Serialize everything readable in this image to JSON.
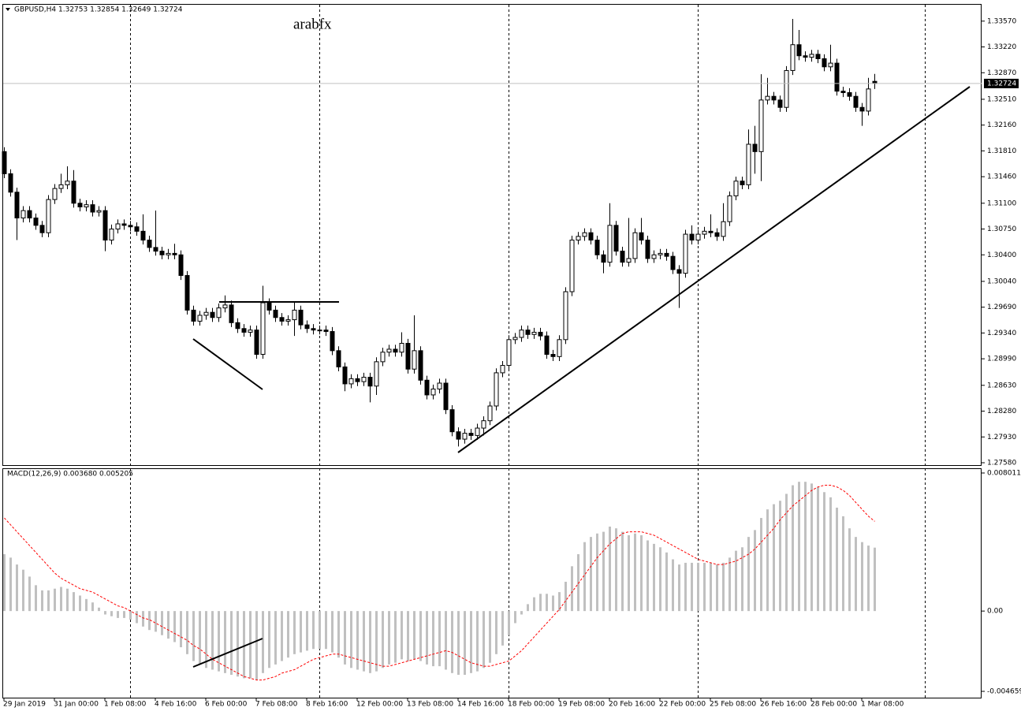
{
  "chart_data": [
    {
      "type": "candlestick",
      "title": "GBPUSD,H4  1.32753 1.32854 1.32649 1.32724",
      "annotation": "arabfx",
      "categories": [
        "29 Jan 2019",
        null,
        null,
        null,
        null,
        null,
        null,
        null,
        "31 Jan 00:00",
        null,
        null,
        null,
        null,
        null,
        null,
        null,
        "1 Feb 08:00",
        null,
        null,
        null,
        null,
        null,
        null,
        null,
        "4 Feb 16:00",
        null,
        null,
        null,
        null,
        null,
        null,
        null,
        "6 Feb 00:00",
        null,
        null,
        null,
        null,
        null,
        null,
        null,
        "7 Feb 08:00",
        null,
        null,
        null,
        null,
        null,
        null,
        null,
        "8 Feb 16:00",
        null,
        null,
        null,
        null,
        null,
        null,
        null,
        "12 Feb 00:00",
        null,
        null,
        null,
        null,
        null,
        null,
        null,
        "13 Feb 08:00",
        null,
        null,
        null,
        null,
        null,
        null,
        null,
        "14 Feb 16:00",
        null,
        null,
        null,
        null,
        null,
        null,
        null,
        "18 Feb 00:00",
        null,
        null,
        null,
        null,
        null,
        null,
        null,
        "19 Feb 08:00",
        null,
        null,
        null,
        null,
        null,
        null,
        null,
        "20 Feb 16:00",
        null,
        null,
        null,
        null,
        null,
        null,
        null,
        "22 Feb 00:00",
        null,
        null,
        null,
        null,
        null,
        null,
        null,
        "25 Feb 08:00",
        null,
        null,
        null,
        null,
        null,
        null,
        null,
        "26 Feb 16:00",
        null,
        null,
        null,
        null,
        null,
        null,
        null,
        "28 Feb 00:00",
        null,
        null,
        null,
        null,
        null,
        null,
        null,
        "1 Mar 08:00",
        null,
        null
      ],
      "open": [
        1.318,
        1.315,
        1.3125,
        1.309,
        1.31,
        1.309,
        1.308,
        1.307,
        1.3115,
        1.313,
        1.3135,
        1.314,
        1.311,
        1.3105,
        1.3108,
        1.3098,
        1.31,
        1.306,
        1.3075,
        1.3082,
        1.308,
        1.3078,
        1.3072,
        1.306,
        1.305,
        1.3045,
        1.304,
        1.3042,
        1.304,
        1.3012,
        1.2965,
        1.295,
        1.2958,
        1.2962,
        1.2955,
        1.2968,
        1.2972,
        1.2948,
        1.294,
        1.2935,
        1.2938,
        1.2905,
        1.2975,
        1.2965,
        1.2955,
        1.295,
        1.2952,
        1.2965,
        1.2945,
        1.294,
        1.2938,
        1.2938,
        1.2936,
        1.291,
        1.2888,
        1.2865,
        1.2872,
        1.2868,
        1.2874,
        1.2862,
        1.2895,
        1.2908,
        1.2912,
        1.2908,
        1.292,
        1.2885,
        1.291,
        1.287,
        1.285,
        1.2858,
        1.2866,
        1.283,
        1.28,
        1.279,
        1.2798,
        1.2795,
        1.2805,
        1.2815,
        1.2835,
        1.288,
        1.289,
        1.2925,
        1.2928,
        1.2938,
        1.2932,
        1.2935,
        1.293,
        1.2905,
        1.2902,
        1.2925,
        1.299,
        1.306,
        1.3065,
        1.307,
        1.306,
        1.304,
        1.303,
        1.308,
        1.3045,
        1.303,
        1.3035,
        1.307,
        1.306,
        1.3035,
        1.304,
        1.3042,
        1.3038,
        1.302,
        1.3015,
        1.3068,
        1.306,
        1.3068,
        1.3072,
        1.307,
        1.3065,
        1.3085,
        1.312,
        1.314,
        1.3135,
        1.319,
        1.318,
        1.325,
        1.3255,
        1.325,
        1.324,
        1.329,
        1.3325,
        1.331,
        1.3308,
        1.3312,
        1.3306,
        1.3295,
        1.33,
        1.3262,
        1.326,
        1.3255,
        1.324,
        1.3235,
        1.32753
      ],
      "high": [
        1.3186,
        1.3156,
        1.3131,
        1.3106,
        1.3106,
        1.3096,
        1.3086,
        1.3121,
        1.3136,
        1.315,
        1.316,
        1.3155,
        1.3116,
        1.3114,
        1.3114,
        1.3106,
        1.3106,
        1.3081,
        1.3088,
        1.3088,
        1.3086,
        1.3084,
        1.3095,
        1.3066,
        1.31,
        1.3051,
        1.3048,
        1.3055,
        1.3046,
        1.3018,
        1.2971,
        1.2964,
        1.2968,
        1.2968,
        1.2974,
        1.2985,
        1.2978,
        1.2954,
        1.2946,
        1.2944,
        1.2944,
        1.2998,
        1.2981,
        1.2971,
        1.2961,
        1.2958,
        1.2975,
        1.2971,
        1.2951,
        1.2946,
        1.2944,
        1.2944,
        1.2942,
        1.2916,
        1.2894,
        1.2878,
        1.2878,
        1.288,
        1.288,
        1.2901,
        1.2914,
        1.2918,
        1.2918,
        1.2935,
        1.2926,
        1.2958,
        1.2916,
        1.2876,
        1.2864,
        1.2872,
        1.2872,
        1.2836,
        1.2806,
        1.2804,
        1.2804,
        1.2811,
        1.2821,
        1.2841,
        1.2886,
        1.2896,
        1.2931,
        1.2934,
        1.2944,
        1.2944,
        1.2941,
        1.2941,
        1.2936,
        1.2911,
        1.2931,
        1.2996,
        1.3066,
        1.3071,
        1.3076,
        1.3076,
        1.3066,
        1.3046,
        1.311,
        1.3086,
        1.3051,
        1.309,
        1.3076,
        1.309,
        1.3066,
        1.3046,
        1.3048,
        1.3048,
        1.3044,
        1.3026,
        1.3074,
        1.308,
        1.3074,
        1.3078,
        1.3095,
        1.3076,
        1.311,
        1.3126,
        1.3146,
        1.3146,
        1.321,
        1.3215,
        1.3285,
        1.328,
        1.3261,
        1.3256,
        1.3296,
        1.336,
        1.3345,
        1.3316,
        1.3318,
        1.3318,
        1.3312,
        1.3325,
        1.3306,
        1.3268,
        1.3266,
        1.3261,
        1.3246,
        1.328,
        1.32854
      ],
      "low": [
        1.3144,
        1.3119,
        1.306,
        1.3084,
        1.3084,
        1.3074,
        1.3064,
        1.3064,
        1.3109,
        1.3124,
        1.3129,
        1.3104,
        1.3099,
        1.3099,
        1.3092,
        1.3092,
        1.3045,
        1.3054,
        1.3069,
        1.3074,
        1.3072,
        1.3066,
        1.3054,
        1.3044,
        1.3039,
        1.3034,
        1.3034,
        1.3034,
        1.3006,
        1.2959,
        1.2944,
        1.2944,
        1.2952,
        1.2949,
        1.2949,
        1.2962,
        1.2942,
        1.2934,
        1.2929,
        1.2929,
        1.2899,
        1.2899,
        1.2959,
        1.2949,
        1.2944,
        1.2944,
        1.293,
        1.2939,
        1.2934,
        1.2932,
        1.2932,
        1.293,
        1.2904,
        1.2882,
        1.2855,
        1.2859,
        1.2862,
        1.2862,
        1.284,
        1.285,
        1.2889,
        1.2902,
        1.2902,
        1.2902,
        1.2879,
        1.2879,
        1.2864,
        1.2844,
        1.2844,
        1.2852,
        1.2824,
        1.2794,
        1.278,
        1.2784,
        1.2789,
        1.2789,
        1.2795,
        1.2809,
        1.2829,
        1.2874,
        1.2884,
        1.2919,
        1.2922,
        1.2926,
        1.2926,
        1.2924,
        1.2899,
        1.2896,
        1.2896,
        1.2919,
        1.2984,
        1.3054,
        1.3059,
        1.3054,
        1.3034,
        1.3015,
        1.3024,
        1.3039,
        1.3024,
        1.3024,
        1.3029,
        1.3054,
        1.3029,
        1.3029,
        1.3034,
        1.3032,
        1.3014,
        1.2968,
        1.3009,
        1.3054,
        1.3054,
        1.3062,
        1.3064,
        1.3059,
        1.3059,
        1.3079,
        1.3114,
        1.3129,
        1.3129,
        1.315,
        1.314,
        1.3244,
        1.3244,
        1.3234,
        1.3234,
        1.3284,
        1.3304,
        1.3302,
        1.3302,
        1.33,
        1.3289,
        1.3289,
        1.3256,
        1.3254,
        1.3249,
        1.3234,
        1.3215,
        1.3229,
        1.32649
      ],
      "close": [
        1.315,
        1.3125,
        1.309,
        1.31,
        1.309,
        1.308,
        1.307,
        1.3115,
        1.313,
        1.3135,
        1.314,
        1.311,
        1.3105,
        1.3108,
        1.3098,
        1.31,
        1.306,
        1.3075,
        1.3082,
        1.308,
        1.3078,
        1.3072,
        1.306,
        1.305,
        1.3045,
        1.304,
        1.3042,
        1.304,
        1.3012,
        1.2965,
        1.295,
        1.2958,
        1.2962,
        1.2955,
        1.2968,
        1.2972,
        1.2948,
        1.294,
        1.2935,
        1.2938,
        1.2905,
        1.2975,
        1.2965,
        1.2955,
        1.295,
        1.2952,
        1.2965,
        1.2945,
        1.294,
        1.2938,
        1.2938,
        1.2936,
        1.291,
        1.2888,
        1.2865,
        1.2872,
        1.2868,
        1.2874,
        1.2862,
        1.2895,
        1.2908,
        1.2912,
        1.2908,
        1.292,
        1.2885,
        1.291,
        1.287,
        1.285,
        1.2858,
        1.2866,
        1.283,
        1.28,
        1.279,
        1.2798,
        1.2795,
        1.2805,
        1.2815,
        1.2835,
        1.288,
        1.289,
        1.2925,
        1.2928,
        1.2938,
        1.2932,
        1.2935,
        1.293,
        1.2905,
        1.2902,
        1.2925,
        1.299,
        1.306,
        1.3065,
        1.307,
        1.306,
        1.304,
        1.303,
        1.308,
        1.3045,
        1.303,
        1.3035,
        1.307,
        1.306,
        1.3035,
        1.304,
        1.3042,
        1.3038,
        1.302,
        1.3015,
        1.3068,
        1.306,
        1.3068,
        1.3072,
        1.307,
        1.3065,
        1.3085,
        1.312,
        1.314,
        1.3135,
        1.319,
        1.318,
        1.325,
        1.3255,
        1.325,
        1.324,
        1.329,
        1.3325,
        1.331,
        1.3308,
        1.3312,
        1.3306,
        1.3295,
        1.33,
        1.3262,
        1.326,
        1.3255,
        1.324,
        1.3235,
        1.3265,
        1.32724
      ],
      "ylim": [
        1.27548,
        1.33803
      ],
      "yticks": [
        {
          "value": 1.3357,
          "label": "1.33570"
        },
        {
          "value": 1.3322,
          "label": "1.33220"
        },
        {
          "value": 1.3287,
          "label": "1.32870"
        },
        {
          "value": 1.3251,
          "label": "1.32510"
        },
        {
          "value": 1.3216,
          "label": "1.32160"
        },
        {
          "value": 1.3181,
          "label": "1.31810"
        },
        {
          "value": 1.3146,
          "label": "1.31460"
        },
        {
          "value": 1.311,
          "label": "1.31100"
        },
        {
          "value": 1.3075,
          "label": "1.30750"
        },
        {
          "value": 1.304,
          "label": "1.30400"
        },
        {
          "value": 1.3004,
          "label": "1.30040"
        },
        {
          "value": 1.2969,
          "label": "1.29690"
        },
        {
          "value": 1.2934,
          "label": "1.29340"
        },
        {
          "value": 1.2899,
          "label": "1.28990"
        },
        {
          "value": 1.2863,
          "label": "1.28630"
        },
        {
          "value": 1.2828,
          "label": "1.28280"
        },
        {
          "value": 1.2793,
          "label": "1.27930"
        },
        {
          "value": 1.2758,
          "label": "1.27580"
        }
      ]
    },
    {
      "type": "macd",
      "title": "MACD(12,26,9) 0.003680 0.005205",
      "series": [
        {
          "color": "#c0c0c0",
          "values": [
            0.0033,
            0.0031,
            0.0027,
            0.0024,
            0.002,
            0.0015,
            0.0012,
            0.0012,
            0.0013,
            0.0014,
            0.0013,
            0.0011,
            0.0009,
            0.0007,
            0.0005,
            0.0002,
            -0.0002,
            -0.0003,
            -0.0004,
            -0.0004,
            -0.0005,
            -0.0007,
            -0.0009,
            -0.0011,
            -0.0012,
            -0.0014,
            -0.0016,
            -0.0018,
            -0.0021,
            -0.0025,
            -0.0029,
            -0.0031,
            -0.0033,
            -0.0034,
            -0.0035,
            -0.0036,
            -0.0037,
            -0.0038,
            -0.0039,
            -0.0039,
            -0.004,
            -0.0036,
            -0.0033,
            -0.0031,
            -0.0029,
            -0.0027,
            -0.0025,
            -0.0024,
            -0.0023,
            -0.0022,
            -0.0022,
            -0.0022,
            -0.0024,
            -0.0027,
            -0.0031,
            -0.0033,
            -0.0034,
            -0.0035,
            -0.0036,
            -0.0035,
            -0.0033,
            -0.0031,
            -0.003,
            -0.0028,
            -0.0029,
            -0.0028,
            -0.0029,
            -0.0031,
            -0.0032,
            -0.0032,
            -0.0034,
            -0.0036,
            -0.0037,
            -0.0037,
            -0.0036,
            -0.0035,
            -0.0033,
            -0.003,
            -0.0025,
            -0.002,
            -0.0014,
            -0.0007,
            -0.0002,
            0.0004,
            0.0008,
            0.001,
            0.001,
            0.0009,
            0.0011,
            0.0017,
            0.0026,
            0.0033,
            0.004,
            0.0043,
            0.0045,
            0.0046,
            0.0049,
            0.0048,
            0.0046,
            0.0044,
            0.0045,
            0.0044,
            0.0041,
            0.0039,
            0.0037,
            0.0034,
            0.003,
            0.0027,
            0.0028,
            0.0028,
            0.0028,
            0.0028,
            0.0028,
            0.0027,
            0.0028,
            0.0031,
            0.0035,
            0.0037,
            0.0043,
            0.0047,
            0.0054,
            0.0059,
            0.0062,
            0.0064,
            0.0068,
            0.0073,
            0.0075,
            0.0075,
            0.0074,
            0.0072,
            0.0069,
            0.0066,
            0.006,
            0.0055,
            0.0048,
            0.0043,
            0.004,
            0.0038,
            0.00368
          ]
        },
        {
          "color": "#ff0000",
          "values": [
            0.0054,
            0.005,
            0.0046,
            0.0042,
            0.0038,
            0.0034,
            0.003,
            0.0026,
            0.0022,
            0.0019,
            0.0017,
            0.0015,
            0.0013,
            0.0012,
            0.0011,
            0.0009,
            0.0007,
            0.0005,
            0.0003,
            0.0002,
            0,
            -0.0002,
            -0.0004,
            -0.0005,
            -0.0007,
            -0.0009,
            -0.0011,
            -0.0013,
            -0.0015,
            -0.0017,
            -0.002,
            -0.0022,
            -0.0025,
            -0.0028,
            -0.003,
            -0.0032,
            -0.0034,
            -0.0036,
            -0.0038,
            -0.0039,
            -0.004,
            -0.004,
            -0.0039,
            -0.0038,
            -0.0036,
            -0.0035,
            -0.0034,
            -0.0032,
            -0.003,
            -0.0028,
            -0.0027,
            -0.0026,
            -0.0025,
            -0.0025,
            -0.0026,
            -0.0027,
            -0.0028,
            -0.0029,
            -0.003,
            -0.0031,
            -0.0032,
            -0.0032,
            -0.0031,
            -0.003,
            -0.0029,
            -0.0028,
            -0.0027,
            -0.0026,
            -0.0025,
            -0.0024,
            -0.0023,
            -0.0024,
            -0.0026,
            -0.0028,
            -0.003,
            -0.0031,
            -0.0032,
            -0.0032,
            -0.0031,
            -0.003,
            -0.0029,
            -0.0026,
            -0.0023,
            -0.0019,
            -0.0015,
            -0.0011,
            -0.0007,
            -0.0003,
            0.0001,
            0.0006,
            0.0011,
            0.0016,
            0.0021,
            0.0026,
            0.0031,
            0.0035,
            0.0039,
            0.0042,
            0.0045,
            0.0046,
            0.0046,
            0.0046,
            0.0045,
            0.0044,
            0.0042,
            0.004,
            0.0038,
            0.0036,
            0.0034,
            0.0032,
            0.003,
            0.0029,
            0.0028,
            0.0027,
            0.0027,
            0.0028,
            0.0029,
            0.0031,
            0.0033,
            0.0036,
            0.004,
            0.0044,
            0.0048,
            0.0053,
            0.0057,
            0.0061,
            0.0064,
            0.0067,
            0.007,
            0.0072,
            0.0073,
            0.0073,
            0.0072,
            0.007,
            0.0067,
            0.0063,
            0.0059,
            0.0055,
            0.005205
          ]
        }
      ],
      "ylim": [
        -0.004659,
        0.008011
      ],
      "yticks": [
        0.008011,
        {
          "value": 0,
          "label": "0.00"
        },
        -0.004659
      ]
    }
  ]
}
